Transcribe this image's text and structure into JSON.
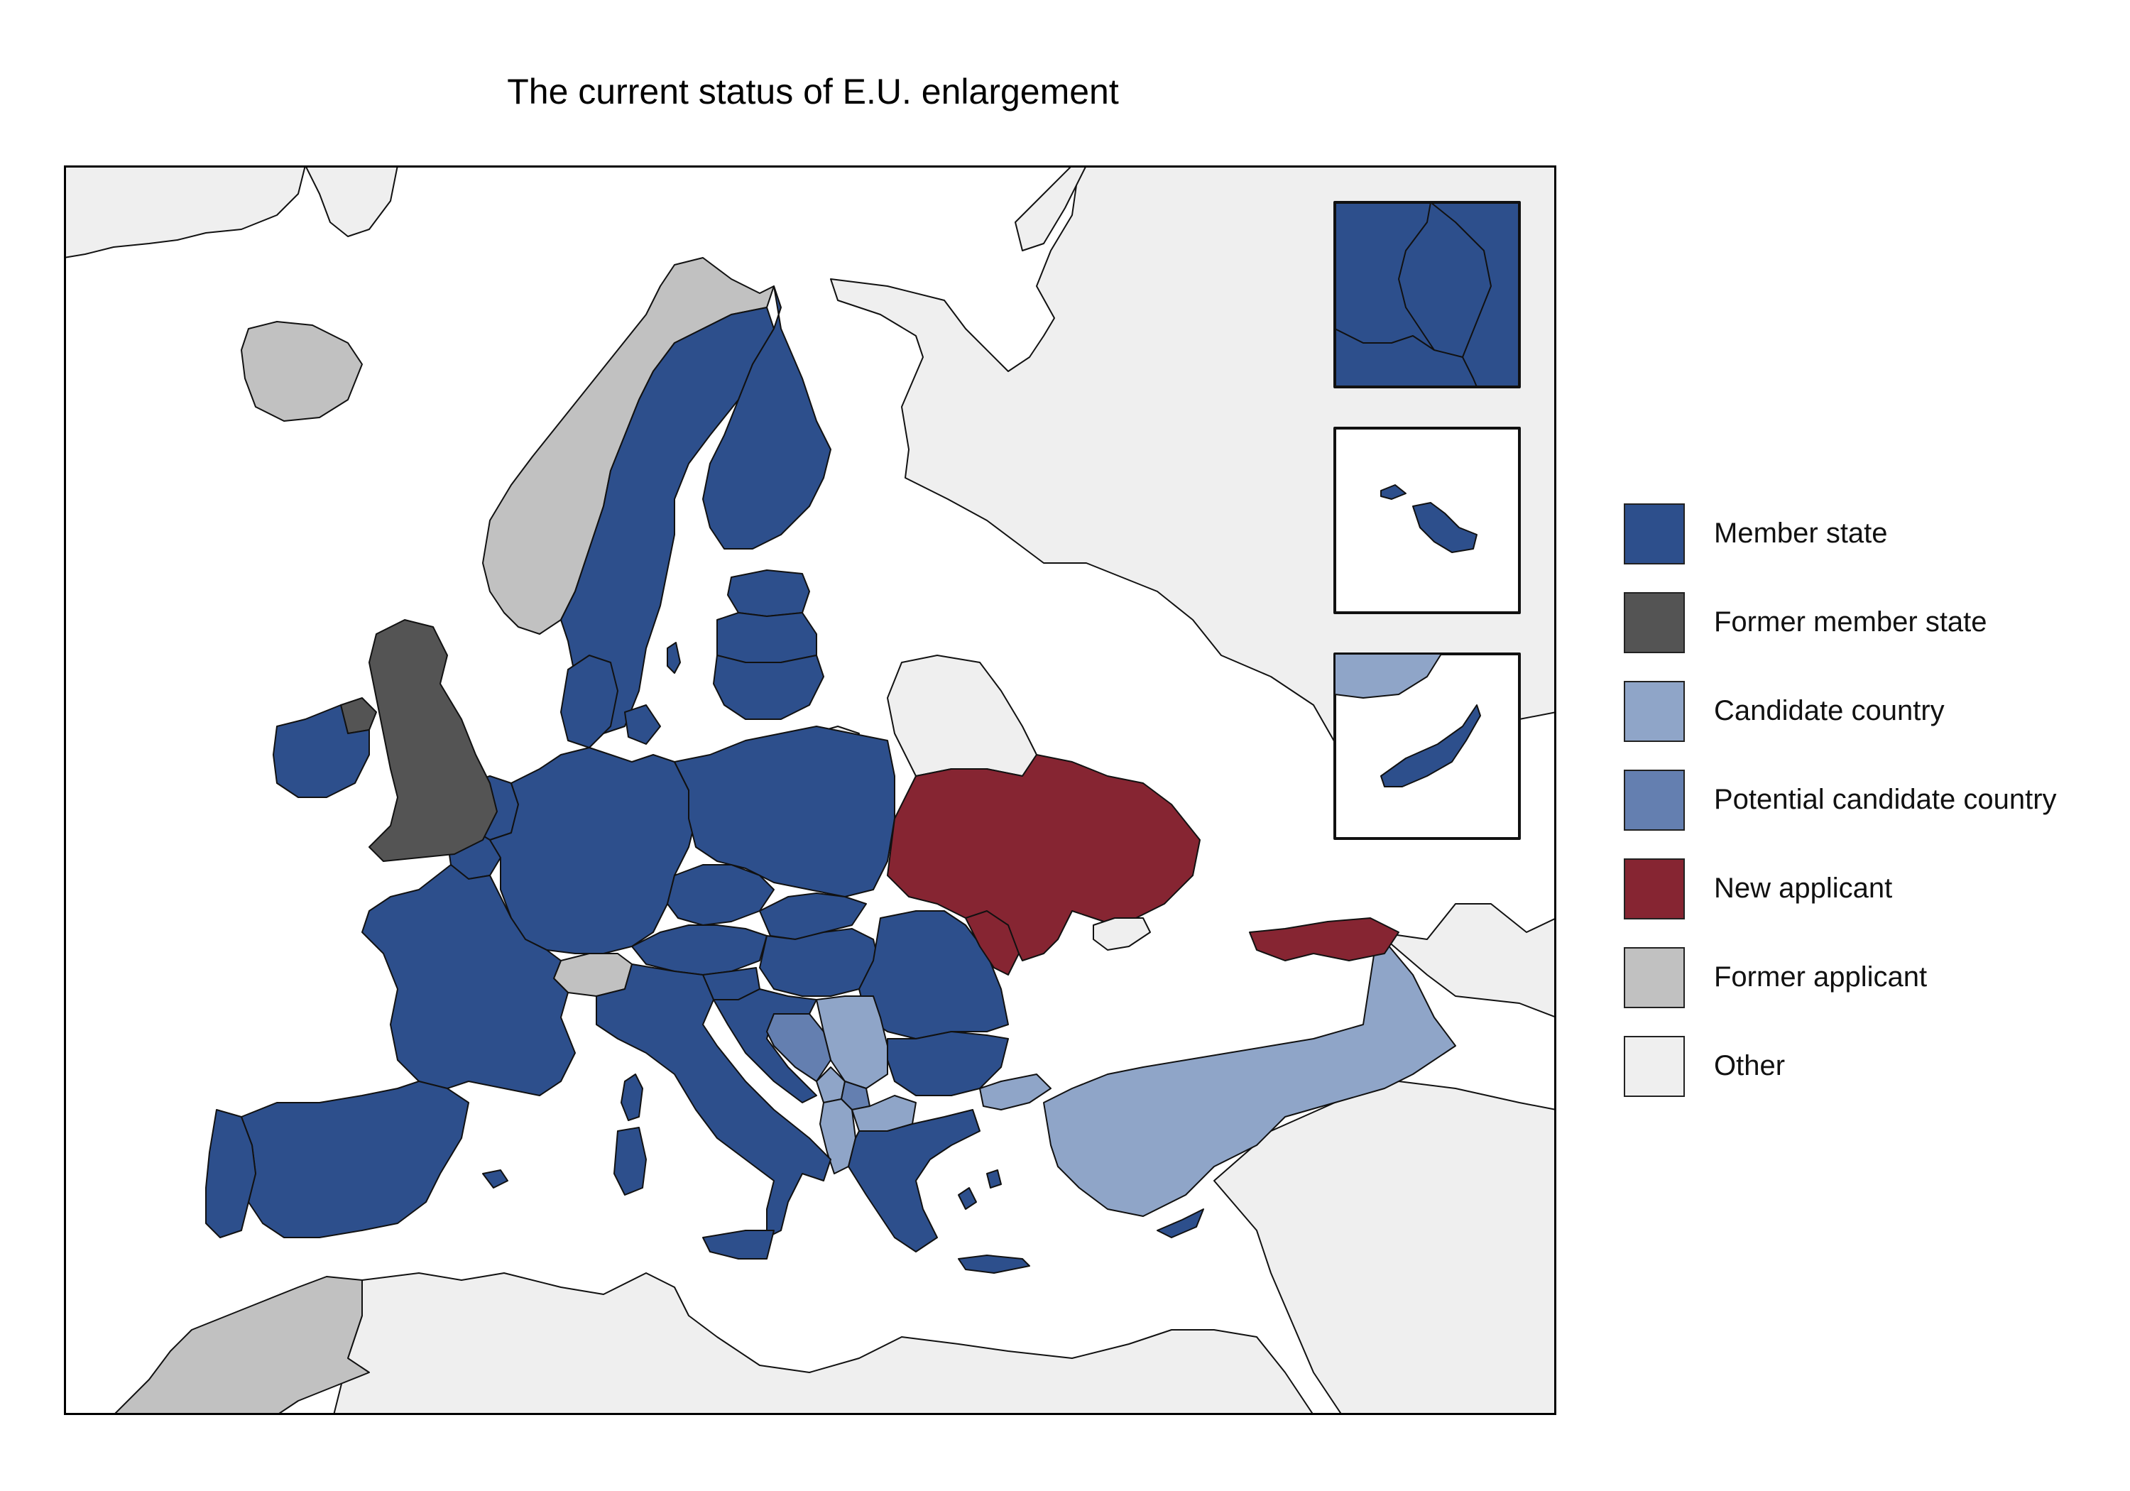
{
  "title": "The current status of E.U. enlargement",
  "colors": {
    "member": "#2d4f8c",
    "former_member": "#545454",
    "candidate": "#8fa5c8",
    "potential": "#647fb0",
    "new_applicant": "#862532",
    "former_applicant": "#c1c1c1",
    "other": "#efefef",
    "sea": "#ffffff"
  },
  "legend": {
    "items": [
      {
        "key": "member",
        "label": "Member state",
        "color": "#2d4f8c"
      },
      {
        "key": "former_member",
        "label": "Former member state",
        "color": "#545454"
      },
      {
        "key": "candidate",
        "label": "Candidate country",
        "color": "#8fa5c8"
      },
      {
        "key": "potential",
        "label": "Potential candidate country",
        "color": "#647fb0"
      },
      {
        "key": "new_applicant",
        "label": "New applicant",
        "color": "#862532"
      },
      {
        "key": "former_applicant",
        "label": "Former applicant",
        "color": "#c1c1c1"
      },
      {
        "key": "other",
        "label": "Other",
        "color": "#efefef"
      }
    ]
  },
  "insets": [
    {
      "name": "Luxembourg",
      "status": "member"
    },
    {
      "name": "Malta",
      "status": "member"
    },
    {
      "name": "Cyprus",
      "status": "member"
    }
  ],
  "regions": [
    {
      "name": "Iceland",
      "status": "former_applicant"
    },
    {
      "name": "Norway",
      "status": "former_applicant"
    },
    {
      "name": "Switzerland",
      "status": "former_applicant"
    },
    {
      "name": "Morocco",
      "status": "former_applicant"
    },
    {
      "name": "United Kingdom",
      "status": "former_member"
    },
    {
      "name": "Northern Ireland",
      "status": "former_member"
    },
    {
      "name": "Ireland",
      "status": "member"
    },
    {
      "name": "Portugal",
      "status": "member"
    },
    {
      "name": "Spain",
      "status": "member"
    },
    {
      "name": "France",
      "status": "member"
    },
    {
      "name": "Belgium",
      "status": "member"
    },
    {
      "name": "Netherlands",
      "status": "member"
    },
    {
      "name": "Germany",
      "status": "member"
    },
    {
      "name": "Denmark",
      "status": "member"
    },
    {
      "name": "Sweden",
      "status": "member"
    },
    {
      "name": "Finland",
      "status": "member"
    },
    {
      "name": "Estonia",
      "status": "member"
    },
    {
      "name": "Latvia",
      "status": "member"
    },
    {
      "name": "Lithuania",
      "status": "member"
    },
    {
      "name": "Poland",
      "status": "member"
    },
    {
      "name": "Czechia",
      "status": "member"
    },
    {
      "name": "Austria",
      "status": "member"
    },
    {
      "name": "Slovakia",
      "status": "member"
    },
    {
      "name": "Hungary",
      "status": "member"
    },
    {
      "name": "Slovenia",
      "status": "member"
    },
    {
      "name": "Croatia",
      "status": "member"
    },
    {
      "name": "Italy",
      "status": "member"
    },
    {
      "name": "Sardinia",
      "status": "member"
    },
    {
      "name": "Corsica",
      "status": "member"
    },
    {
      "name": "Sicily",
      "status": "member"
    },
    {
      "name": "Romania",
      "status": "member"
    },
    {
      "name": "Bulgaria",
      "status": "member"
    },
    {
      "name": "Greece",
      "status": "member"
    },
    {
      "name": "Crete",
      "status": "member"
    },
    {
      "name": "Cyprus",
      "status": "member"
    },
    {
      "name": "Balearic Islands",
      "status": "member"
    },
    {
      "name": "Gotland",
      "status": "member"
    },
    {
      "name": "Bosnia and Herzegovina",
      "status": "potential"
    },
    {
      "name": "Kosovo",
      "status": "potential"
    },
    {
      "name": "Serbia",
      "status": "candidate"
    },
    {
      "name": "Montenegro",
      "status": "candidate"
    },
    {
      "name": "Albania",
      "status": "candidate"
    },
    {
      "name": "North Macedonia",
      "status": "candidate"
    },
    {
      "name": "Turkey",
      "status": "candidate"
    },
    {
      "name": "Turkey (European part)",
      "status": "candidate"
    },
    {
      "name": "Ukraine",
      "status": "new_applicant"
    },
    {
      "name": "Moldova",
      "status": "new_applicant"
    },
    {
      "name": "Georgia",
      "status": "new_applicant"
    },
    {
      "name": "Crimea",
      "status": "other"
    },
    {
      "name": "Belarus",
      "status": "other"
    },
    {
      "name": "Kaliningrad",
      "status": "other"
    },
    {
      "name": "Russia",
      "status": "other"
    },
    {
      "name": "North Africa",
      "status": "other"
    },
    {
      "name": "Middle East",
      "status": "other"
    },
    {
      "name": "Caucasus",
      "status": "other"
    },
    {
      "name": "Greenland",
      "status": "other"
    },
    {
      "name": "Svalbard",
      "status": "other"
    },
    {
      "name": "Novaya Zemlya",
      "status": "other"
    }
  ]
}
